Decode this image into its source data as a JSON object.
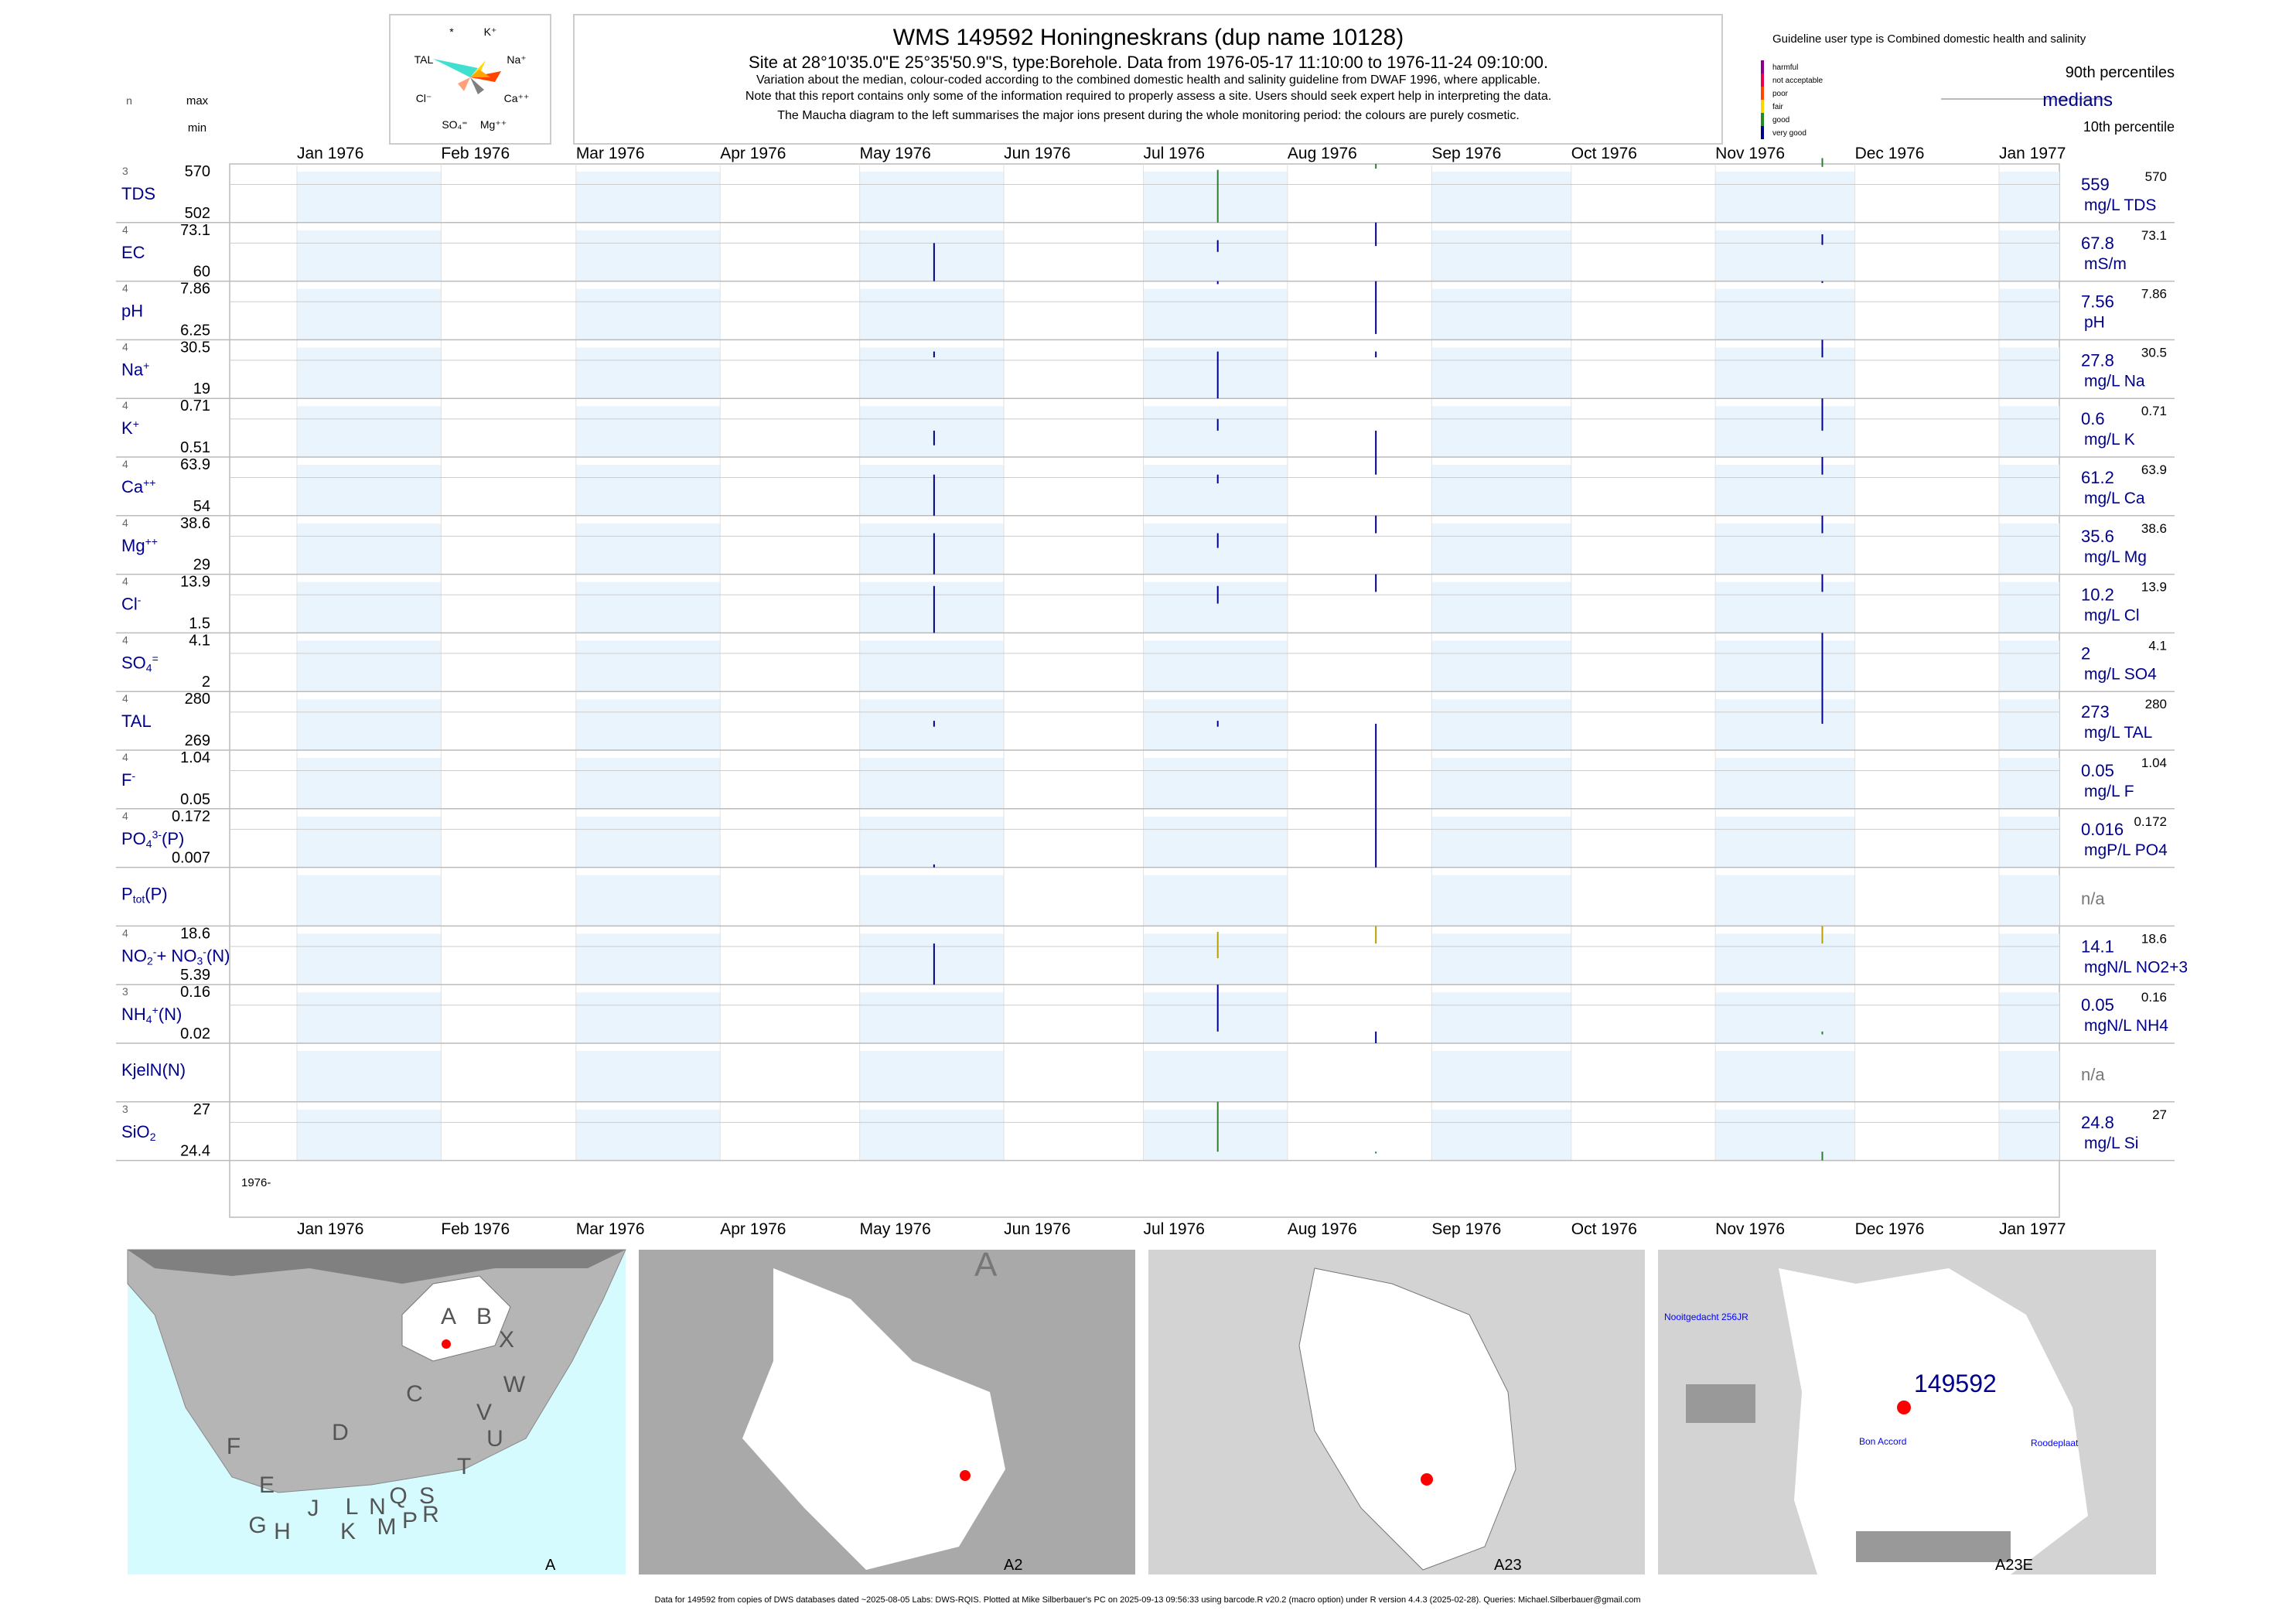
{
  "header": {
    "title": "WMS 149592  Honingneskrans (dup name 10128)",
    "location": "Site at 28°10'35.0\"E 25°35'50.9\"S, type:Borehole.  Data from 1976-05-17 11:10:00 to 1976-11-24 09:10:00.",
    "note1": "Variation about the median,  colour-coded according to the combined domestic health and salinity guideline from DWAF 1996, where applicable.",
    "note2": "Note that this report contains only some of the information required to properly assess a site. Users should seek expert help in interpreting the data.",
    "note3": "The Maucha diagram to the left summarises the major ions present during the whole monitoring period: the colours are purely cosmetic."
  },
  "column_heads": {
    "n": "n",
    "max": "max",
    "min": "min"
  },
  "maucha_labels": [
    "*",
    "K⁺",
    "TAL",
    "Na⁺",
    "Cl⁻",
    "Ca⁺⁺",
    "SO₄⁼",
    "Mg⁺⁺"
  ],
  "legend": {
    "guideline": "Guideline user type is Combined domestic health and salinity",
    "classes": [
      "harmful",
      "not acceptable",
      "poor",
      "fair",
      "good",
      "very good"
    ],
    "colors": [
      "#8b008b",
      "#e8004c",
      "#ff4500",
      "#ffd700",
      "#228b22",
      "#00008b"
    ],
    "p90": "90th percentiles",
    "median": "medians",
    "p10": "10th percentile"
  },
  "months": [
    "Jan 1976",
    "Feb 1976",
    "Mar 1976",
    "Apr 1976",
    "May 1976",
    "Jun 1976",
    "Jul 1976",
    "Aug 1976",
    "Sep 1976",
    "Oct 1976",
    "Nov 1976",
    "Dec 1976",
    "Jan 1977"
  ],
  "year_note": "1976-",
  "rows": [
    {
      "label": [
        "TDS"
      ],
      "n": 3,
      "max": 570,
      "min": 502,
      "median": 559,
      "unit": "mg/L TDS"
    },
    {
      "label": [
        "EC"
      ],
      "n": 4,
      "max": 73.1,
      "min": 60,
      "median": 67.8,
      "unit": "mS/m"
    },
    {
      "label": [
        "pH"
      ],
      "n": 4,
      "max": 7.86,
      "min": 6.25,
      "median": 7.56,
      "unit": "pH"
    },
    {
      "label": [
        "Na",
        {
          "t": "+",
          "p": "sup"
        }
      ],
      "n": 4,
      "max": 30.5,
      "min": 19,
      "median": 27.8,
      "unit": "mg/L Na"
    },
    {
      "label": [
        "K",
        {
          "t": "+",
          "p": "sup"
        }
      ],
      "n": 4,
      "max": 0.71,
      "min": 0.51,
      "median": 0.6,
      "unit": "mg/L K"
    },
    {
      "label": [
        "Ca",
        {
          "t": "++",
          "p": "sup"
        }
      ],
      "n": 4,
      "max": 63.9,
      "min": 54,
      "median": 61.2,
      "unit": "mg/L Ca"
    },
    {
      "label": [
        "Mg",
        {
          "t": "++",
          "p": "sup"
        }
      ],
      "n": 4,
      "max": 38.6,
      "min": 29,
      "median": 35.6,
      "unit": "mg/L Mg"
    },
    {
      "label": [
        "Cl",
        {
          "t": "-",
          "p": "sup"
        }
      ],
      "n": 4,
      "max": 13.9,
      "min": 1.5,
      "median": 10.2,
      "unit": "mg/L Cl"
    },
    {
      "label": [
        "SO",
        {
          "t": "4",
          "p": "sub"
        },
        {
          "t": "=",
          "p": "sup"
        }
      ],
      "n": 4,
      "max": 4.1,
      "min": 2,
      "median": 2,
      "unit": "mg/L SO4"
    },
    {
      "label": [
        "TAL"
      ],
      "n": 4,
      "max": 280,
      "min": 269,
      "median": 273,
      "unit": "mg/L TAL"
    },
    {
      "label": [
        "F",
        {
          "t": "-",
          "p": "sup"
        }
      ],
      "n": 4,
      "max": 1.04,
      "min": 0.05,
      "median": 0.05,
      "unit": "mg/L F"
    },
    {
      "label": [
        "PO",
        {
          "t": "4",
          "p": "sub"
        },
        {
          "t": "3-",
          "p": "sup"
        },
        "(P)"
      ],
      "n": 4,
      "max": 0.172,
      "min": 0.007,
      "median": 0.016,
      "unit": "mgP/L PO4"
    },
    {
      "label": [
        "P",
        {
          "t": "tot",
          "p": "sub"
        },
        "(P)"
      ],
      "median": "n/a"
    },
    {
      "label": [
        "NO",
        {
          "t": "2",
          "p": "sub"
        },
        {
          "t": "-",
          "p": "sup"
        },
        "+ NO",
        {
          "t": "3",
          "p": "sub"
        },
        {
          "t": "-",
          "p": "sup"
        },
        "(N)"
      ],
      "n": 4,
      "max": 18.6,
      "min": 5.39,
      "median": 14.1,
      "unit": "mgN/L NO2+3"
    },
    {
      "label": [
        "NH",
        {
          "t": "4",
          "p": "sub"
        },
        {
          "t": "+",
          "p": "sup"
        },
        "(N)"
      ],
      "n": 3,
      "max": 0.16,
      "min": 0.02,
      "median": 0.05,
      "unit": "mgN/L NH4"
    },
    {
      "label": [
        "KjelN(N)"
      ],
      "median": "n/a"
    },
    {
      "label": [
        "SiO",
        {
          "t": "2",
          "p": "sub"
        }
      ],
      "n": 3,
      "max": 27,
      "min": 24.4,
      "median": 24.8,
      "unit": "mg/L Si"
    }
  ],
  "maps": [
    {
      "caption": "A",
      "letters": [
        "A",
        "B",
        "X",
        "W",
        "C",
        "D",
        "V",
        "U",
        "T",
        "F",
        "E",
        "G",
        "H",
        "J",
        "L",
        "N",
        "Q",
        "S",
        "R",
        "P",
        "M",
        "K"
      ]
    },
    {
      "caption": "A2",
      "letters": [
        "A"
      ]
    },
    {
      "caption": "A23"
    },
    {
      "caption": "A23E",
      "site": "149592",
      "places": [
        "Nooitgedacht 256JR",
        "Bon Accord",
        "Roodeplaat"
      ]
    }
  ],
  "footer": "Data for 149592 from copies of DWS databases dated ~2025-08-05 Labs: DWS-RQIS. Plotted at Mike Silberbauer's PC on 2025-09-13 09:56:33 using barcode.R v20.2 (macro option) under R version 4.4.3 (2025-02-28). Queries: Michael.Silberbauer@gmail.com"
}
